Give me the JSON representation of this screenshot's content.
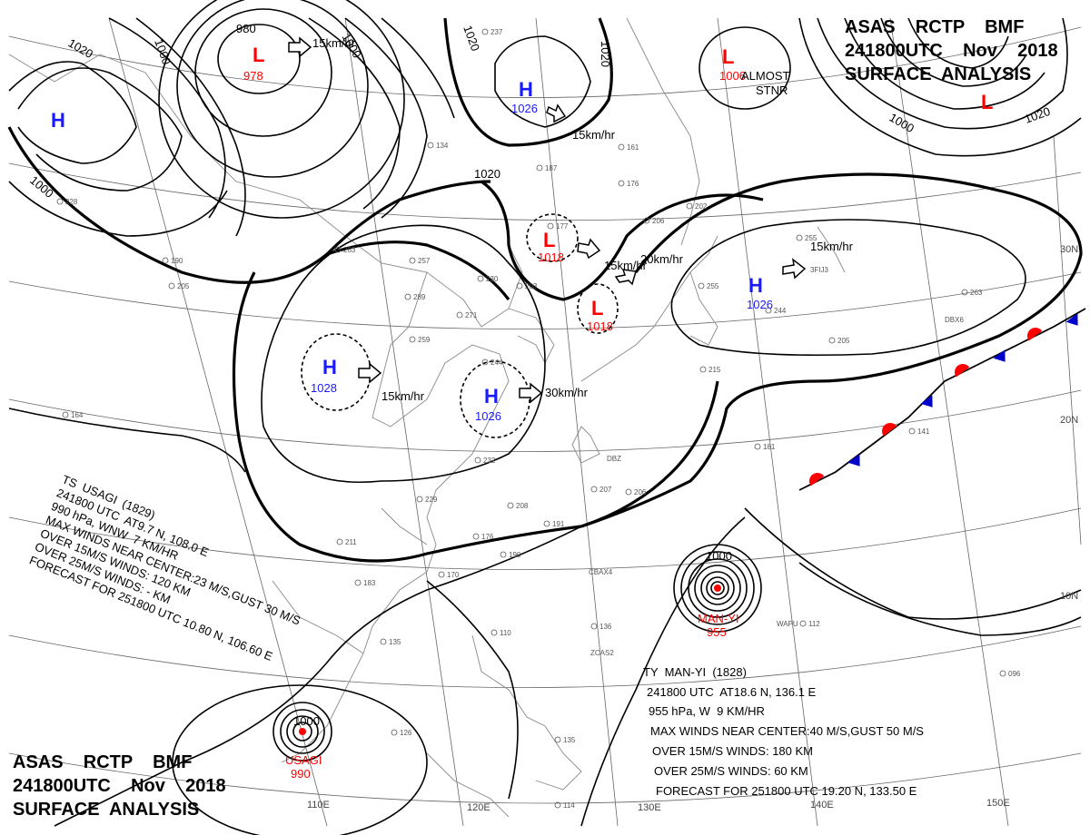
{
  "header_tr": {
    "line1": "ASAS    RCTP    BMF",
    "line2": "241800UTC    Nov    2018",
    "line3": "SURFACE  ANALYSIS"
  },
  "header_bl": {
    "line1": "ASAS    RCTP    BMF",
    "line2": "241800UTC    Nov    2018",
    "line3": "SURFACE  ANALYSIS"
  },
  "colors": {
    "high": "#1a1aff",
    "low": "#ff0000",
    "cold_front": "#0000cc",
    "warm_front": "#ff0000"
  },
  "systems": {
    "lows": [
      {
        "symbol": "L",
        "value": "978"
      },
      {
        "symbol": "L",
        "value": "1006"
      },
      {
        "symbol": "L",
        "value": ""
      },
      {
        "symbol": "L",
        "value": "1018"
      },
      {
        "symbol": "L",
        "value": "1018"
      }
    ],
    "highs": [
      {
        "symbol": "H",
        "value": ""
      },
      {
        "symbol": "H",
        "value": "1026"
      },
      {
        "symbol": "H",
        "value": "1028"
      },
      {
        "symbol": "H",
        "value": "1026"
      },
      {
        "symbol": "H",
        "value": "1026"
      }
    ]
  },
  "motions": [
    "15km/hr",
    "15km/hr",
    "15km/hr",
    "20km/hr",
    "15km/hr",
    "15km/hr",
    "30km/hr"
  ],
  "isobar_labels": [
    "1020",
    "1000",
    "980",
    "1000",
    "1020",
    "1020",
    "1020",
    "1000",
    "1000",
    "1020",
    "1000",
    "1000"
  ],
  "almost_stnr": {
    "line1": "ALMOST",
    "line2": "STNR"
  },
  "typhoons": [
    {
      "label": "MAN-YI",
      "pressure": "955"
    },
    {
      "label": "USAGI",
      "pressure": "990"
    }
  ],
  "usagi_info": [
    "TS  USAGI  (1829)",
    "241800 UTC  AT9.7 N, 108.0 E",
    "990 hPa, WNW  7 KM/HR",
    "MAX WINDS NEAR CENTER:23 M/S,GUST 30 M/S",
    "OVER 15M/S WINDS: 120 KM",
    "OVER 25M/S WINDS: - KM",
    "FORECAST FOR 251800 UTC 10.80 N, 106.60 E"
  ],
  "manyi_info": [
    "TY  MAN-YI  (1828)",
    "241800 UTC  AT18.6 N, 136.1 E",
    "955 hPa, W  9 KM/HR",
    "MAX WINDS NEAR CENTER:40 M/S,GUST 50 M/S",
    "OVER 15M/S WINDS: 180 KM",
    "OVER 25M/S WINDS: 60 KM",
    "FORECAST FOR 251800 UTC 19.20 N, 133.50 E"
  ],
  "lon_labels": [
    "110E",
    "120E",
    "130E",
    "140E",
    "150E"
  ],
  "lat_labels": [
    "30N",
    "20N",
    "10N"
  ],
  "station_samples": [
    "237",
    "187",
    "161",
    "176",
    "206",
    "202",
    "263",
    "257",
    "230",
    "289",
    "259",
    "271",
    "244",
    "205",
    "215",
    "181",
    "141",
    "229",
    "232",
    "208",
    "191",
    "207",
    "206",
    "211",
    "183",
    "170",
    "190",
    "176",
    "110",
    "135",
    "136",
    "112",
    "126",
    "135",
    "114",
    "096",
    "164",
    "134",
    "228",
    "190",
    "205",
    "177",
    "203",
    "255",
    "263",
    "244",
    "255"
  ],
  "station_ids": [
    "DBZ",
    "CBAX4",
    "ZCAS2",
    "WAPU",
    "DBX6",
    "3FIJ3"
  ]
}
